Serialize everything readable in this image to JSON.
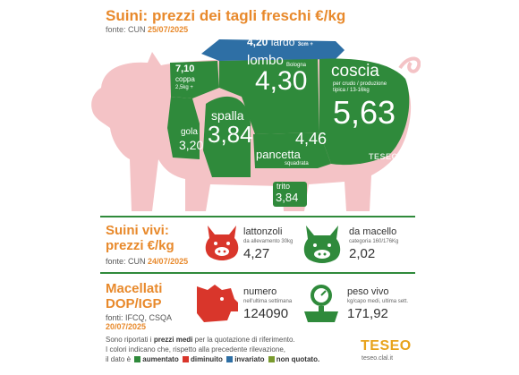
{
  "header": {
    "title": "Suini: prezzi dei tagli freschi €/kg",
    "source_label": "fonte: CUN",
    "source_date": "25/07/2025"
  },
  "cuts": {
    "lardo": {
      "value": "4,20",
      "name": "lardo",
      "note": "3cm +"
    },
    "coppa": {
      "value": "7,10",
      "name": "coppa",
      "note": "2,5kg +"
    },
    "lombo": {
      "name": "lombo",
      "note": "Bologna",
      "value": "4,30"
    },
    "coscia": {
      "name": "coscia",
      "note": "per crudo / produzione tipica / 13-16kg",
      "value": "5,63"
    },
    "gola": {
      "name": "gola",
      "value": "3,20"
    },
    "spalla": {
      "name": "spalla",
      "value": "3,84"
    },
    "pancetta": {
      "name": "pancetta",
      "note": "squadrata",
      "value": "4,46"
    },
    "trito": {
      "name": "trito",
      "value": "3,84"
    },
    "watermark": "TESEO"
  },
  "vivi": {
    "title_line1": "Suini vivi:",
    "title_line2": "prezzi €/kg",
    "source_label": "fonte: CUN",
    "source_date": "24/07/2025",
    "lattonzoli": {
      "label": "lattonzoli",
      "sub": "da allevamento 30kg",
      "value": "4,27"
    },
    "macello": {
      "label": "da macello",
      "sub": "categoria 160/176Kg",
      "value": "2,02"
    }
  },
  "macellati": {
    "title_line1": "Macellati",
    "title_line2": "DOP/IGP",
    "source_label": "fonti: IFCQ, CSQA",
    "source_date": "20/07/2025",
    "numero": {
      "label": "numero",
      "sub": "nell'ultima settimana",
      "value": "124090"
    },
    "peso": {
      "label": "peso vivo",
      "sub": "kg/capo medi, ultima sett.",
      "value": "171,92"
    }
  },
  "legend": {
    "line1_a": "Sono riportati i",
    "line1_b": "prezzi medi",
    "line1_c": "per la quotazione di riferimento.",
    "line2": "I colori indicano che, rispetto alla precedente rilevazione,",
    "line3_a": "il dato è",
    "aumentato": "aumentato",
    "diminuito": "diminuito",
    "invariato": "invariato",
    "non_quotato": "non quotato.",
    "colors": {
      "aumentato": "#2f8a3b",
      "diminuito": "#d9362b",
      "invariato": "#2e6fa5",
      "non_quotato": "#7a9b2f"
    }
  },
  "brand": {
    "logo": "TESEO",
    "url": "teseo.clal.it"
  }
}
